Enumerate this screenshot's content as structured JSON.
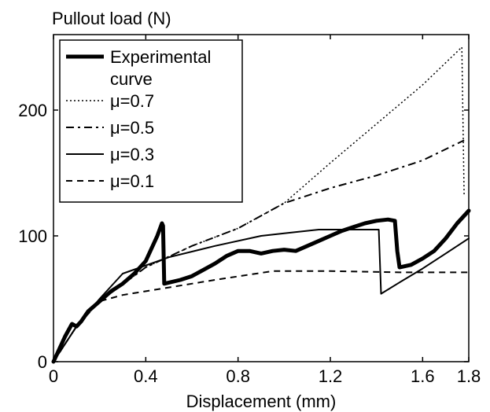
{
  "chart_data": {
    "type": "line",
    "title": "",
    "ylabel": "Pullout load (N)",
    "xlabel": "Displacement (mm)",
    "xlim": [
      0,
      1.8
    ],
    "ylim": [
      0,
      260
    ],
    "x_ticks": [
      {
        "value": 0,
        "label": "0"
      },
      {
        "value": 0.4,
        "label": "0.4"
      },
      {
        "value": 0.8,
        "label": "0.8"
      },
      {
        "value": 1.2,
        "label": "1.2"
      },
      {
        "value": 1.6,
        "label": "1.6"
      },
      {
        "value": 1.8,
        "label": "1.8"
      }
    ],
    "y_ticks": [
      {
        "value": 0,
        "label": "0"
      },
      {
        "value": 100,
        "label": "100"
      },
      {
        "value": 200,
        "label": "200"
      }
    ],
    "legend_position": "top-left",
    "grid": false,
    "series": [
      {
        "name": "Experimental curve",
        "legend_lines": [
          "Experimental",
          "curve"
        ],
        "style": "solid-thick",
        "points": [
          [
            0.0,
            0
          ],
          [
            0.02,
            8
          ],
          [
            0.05,
            20
          ],
          [
            0.08,
            30
          ],
          [
            0.1,
            28
          ],
          [
            0.12,
            32
          ],
          [
            0.15,
            40
          ],
          [
            0.2,
            48
          ],
          [
            0.25,
            56
          ],
          [
            0.3,
            62
          ],
          [
            0.35,
            70
          ],
          [
            0.4,
            80
          ],
          [
            0.45,
            100
          ],
          [
            0.47,
            110
          ],
          [
            0.475,
            108
          ],
          [
            0.48,
            62
          ],
          [
            0.55,
            65
          ],
          [
            0.6,
            68
          ],
          [
            0.65,
            73
          ],
          [
            0.7,
            78
          ],
          [
            0.75,
            84
          ],
          [
            0.8,
            88
          ],
          [
            0.85,
            88
          ],
          [
            0.9,
            86
          ],
          [
            0.95,
            88
          ],
          [
            1.0,
            89
          ],
          [
            1.05,
            88
          ],
          [
            1.1,
            92
          ],
          [
            1.15,
            96
          ],
          [
            1.2,
            100
          ],
          [
            1.25,
            104
          ],
          [
            1.3,
            107
          ],
          [
            1.35,
            110
          ],
          [
            1.4,
            112
          ],
          [
            1.45,
            113
          ],
          [
            1.48,
            112
          ],
          [
            1.49,
            88
          ],
          [
            1.5,
            75
          ],
          [
            1.55,
            77
          ],
          [
            1.6,
            82
          ],
          [
            1.65,
            88
          ],
          [
            1.7,
            98
          ],
          [
            1.75,
            110
          ],
          [
            1.8,
            120
          ]
        ]
      },
      {
        "name": "μ=0.7",
        "style": "dotted",
        "points": [
          [
            0.0,
            0
          ],
          [
            0.1,
            28
          ],
          [
            0.2,
            48
          ],
          [
            0.4,
            75
          ],
          [
            0.6,
            92
          ],
          [
            0.8,
            106
          ],
          [
            1.0,
            126
          ],
          [
            1.2,
            158
          ],
          [
            1.4,
            189
          ],
          [
            1.6,
            220
          ],
          [
            1.77,
            250
          ],
          [
            1.78,
            132
          ]
        ]
      },
      {
        "name": "μ=0.5",
        "style": "dashdot",
        "points": [
          [
            0.0,
            0
          ],
          [
            0.1,
            28
          ],
          [
            0.2,
            48
          ],
          [
            0.4,
            75
          ],
          [
            0.6,
            92
          ],
          [
            0.8,
            106
          ],
          [
            1.0,
            126
          ],
          [
            1.2,
            138
          ],
          [
            1.4,
            148
          ],
          [
            1.6,
            160
          ],
          [
            1.78,
            176
          ]
        ]
      },
      {
        "name": "μ=0.3",
        "style": "solid",
        "points": [
          [
            0.0,
            0
          ],
          [
            0.1,
            28
          ],
          [
            0.2,
            50
          ],
          [
            0.3,
            70
          ],
          [
            0.5,
            83
          ],
          [
            0.7,
            92
          ],
          [
            0.9,
            100
          ],
          [
            1.0,
            102
          ],
          [
            1.15,
            105
          ],
          [
            1.3,
            105
          ],
          [
            1.41,
            105
          ],
          [
            1.42,
            54
          ],
          [
            1.5,
            63
          ],
          [
            1.6,
            74
          ],
          [
            1.7,
            86
          ],
          [
            1.8,
            98
          ]
        ]
      },
      {
        "name": "μ=0.1",
        "style": "dashed",
        "points": [
          [
            0.0,
            0
          ],
          [
            0.1,
            28
          ],
          [
            0.2,
            48
          ],
          [
            0.3,
            53
          ],
          [
            0.5,
            59
          ],
          [
            0.7,
            65
          ],
          [
            0.95,
            72
          ],
          [
            1.2,
            72
          ],
          [
            1.5,
            71
          ],
          [
            1.8,
            71
          ]
        ]
      }
    ]
  }
}
